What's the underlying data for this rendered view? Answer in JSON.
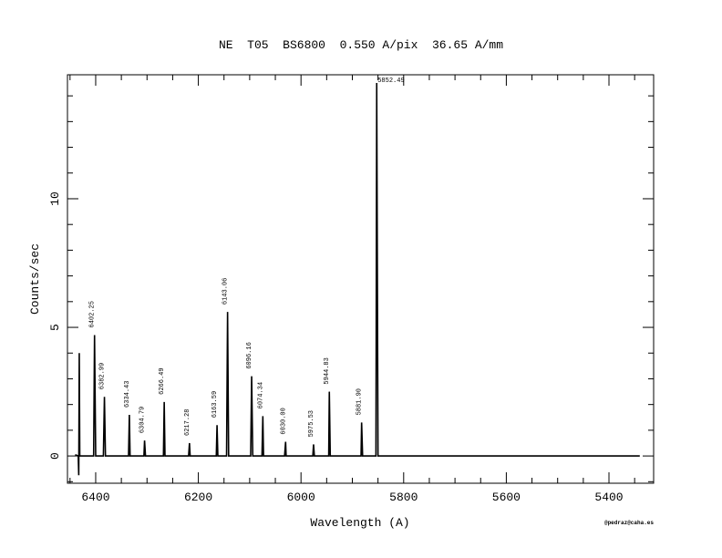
{
  "chart_data": {
    "type": "line",
    "title": "NE  T05  BS6800  0.550 A/pix  36.65 A/mm",
    "xlabel": "Wavelength (A)",
    "ylabel": "Counts/sec",
    "footer": "@pedraz@caha.es",
    "xlim": [
      6455,
      5313
    ],
    "ylim": [
      -1.06,
      14.82
    ],
    "xticks": [
      6400,
      6200,
      6000,
      5800,
      5600,
      5400
    ],
    "yticks": [
      0,
      5,
      10
    ],
    "xminorticks": [
      6450,
      6350,
      6300,
      6250,
      6150,
      6100,
      6050,
      5950,
      5900,
      5850,
      5750,
      5700,
      5650,
      5550,
      5500,
      5450,
      5350
    ],
    "yminorticks": [
      -1,
      1,
      2,
      3,
      4,
      6,
      7,
      8,
      9,
      11,
      12,
      13,
      14
    ],
    "series": [
      {
        "color": "#000000",
        "x": [
          6440,
          6434,
          6433,
          6432,
          6431,
          6404,
          6402.25,
          6400,
          6385,
          6382.99,
          6381,
          6336,
          6334.43,
          6333,
          6306,
          6304.79,
          6303,
          6268,
          6266.49,
          6265,
          6219,
          6217.28,
          6216,
          6165,
          6163.59,
          6162,
          6145,
          6143.06,
          6141,
          6098,
          6096.16,
          6094,
          6076,
          6074.34,
          6073,
          6032,
          6030.0,
          6029,
          5977,
          5975.53,
          5974,
          5946,
          5944.83,
          5943,
          5883,
          5881.9,
          5880,
          5854,
          5852.49,
          5850,
          5340
        ],
        "values": [
          0.05,
          0,
          -0.75,
          4.0,
          0,
          0,
          4.7,
          0,
          0,
          2.3,
          0,
          0,
          1.6,
          0,
          0,
          0.6,
          0,
          0,
          2.1,
          0,
          0,
          0.5,
          0,
          0,
          1.2,
          0,
          0,
          5.6,
          0,
          0,
          3.1,
          0,
          0,
          1.55,
          0,
          0,
          0.55,
          0,
          0,
          0.45,
          0,
          0,
          2.5,
          0,
          0,
          1.3,
          0,
          0,
          14.5,
          0,
          0
        ]
      }
    ],
    "annotations": [
      {
        "x": 6402.25,
        "text": "6402.25"
      },
      {
        "x": 6382.99,
        "text": "6382.99"
      },
      {
        "x": 6334.43,
        "text": "6334.43"
      },
      {
        "x": 6304.79,
        "text": "6304.79"
      },
      {
        "x": 6266.49,
        "text": "6266.49"
      },
      {
        "x": 6217.28,
        "text": "6217.28"
      },
      {
        "x": 6163.59,
        "text": "6163.59"
      },
      {
        "x": 6143.06,
        "text": "6143.06"
      },
      {
        "x": 6096.16,
        "text": "6096.16"
      },
      {
        "x": 6074.34,
        "text": "6074.34"
      },
      {
        "x": 6030.0,
        "text": "6030.00"
      },
      {
        "x": 5975.53,
        "text": "5975.53"
      },
      {
        "x": 5944.83,
        "text": "5944.83"
      },
      {
        "x": 5881.9,
        "text": "5881.90"
      },
      {
        "x": 5852.49,
        "text": "5852.49"
      }
    ]
  }
}
